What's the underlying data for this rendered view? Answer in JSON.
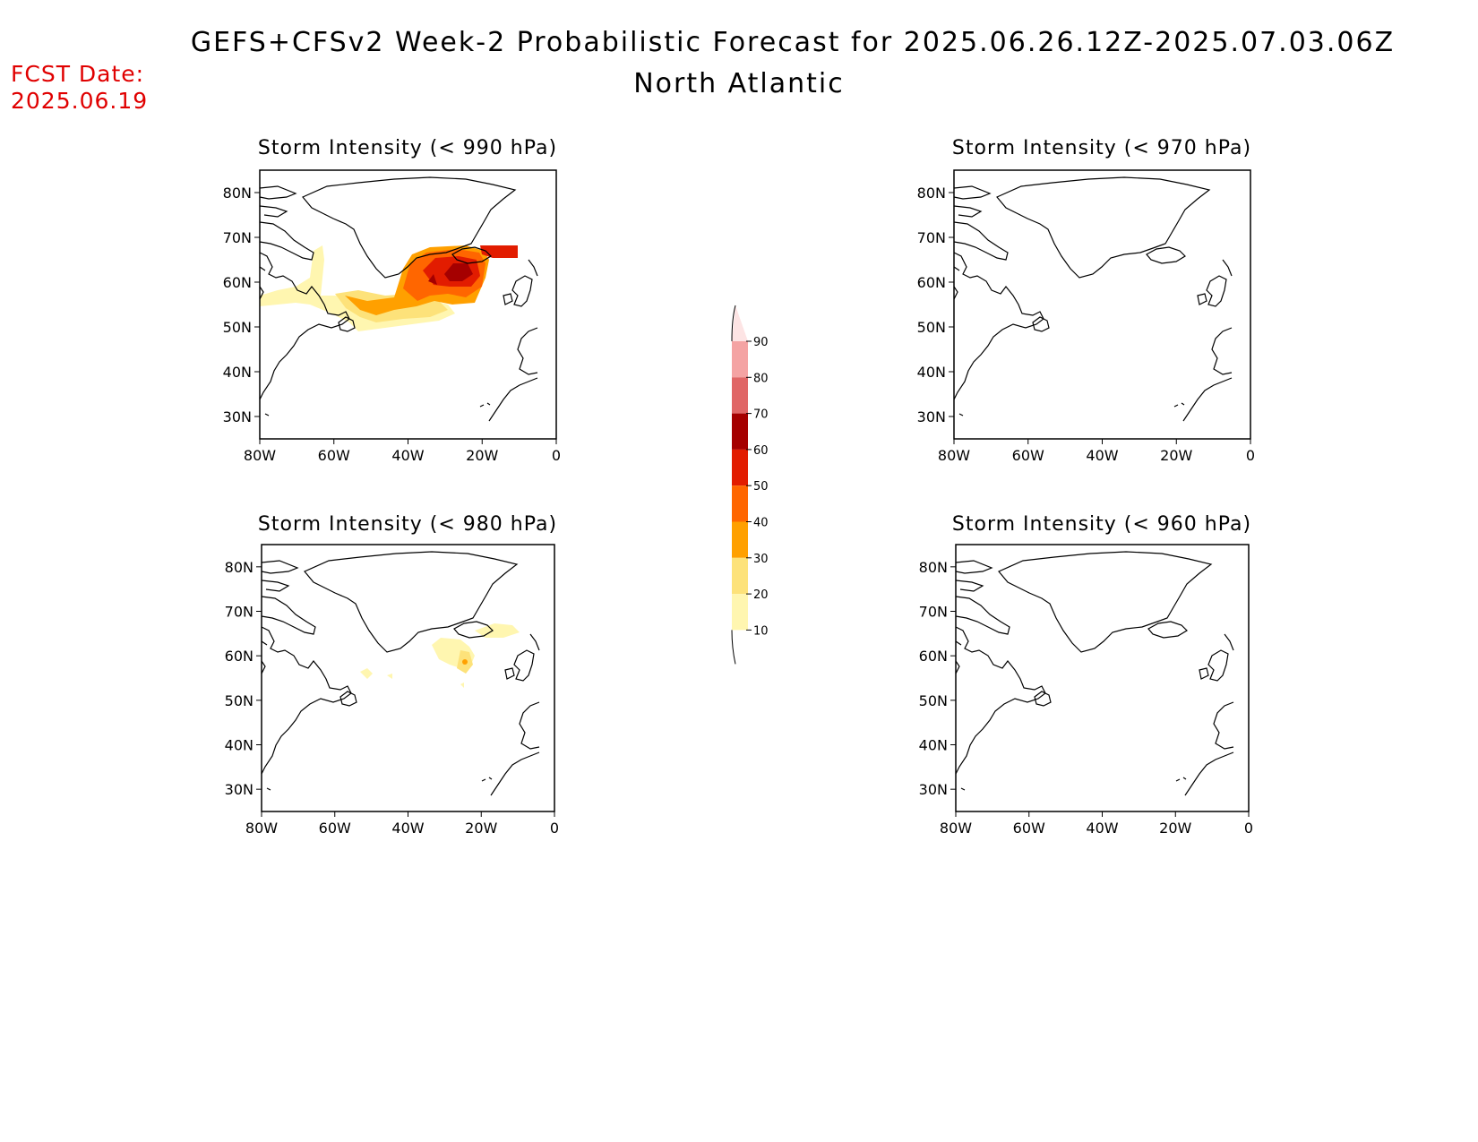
{
  "title": "GEFS+CFSv2 Week-2 Probabilistic Forecast for 2025.06.26.12Z-2025.07.03.06Z",
  "subtitle": "North Atlantic",
  "forecast_date": {
    "label": "FCST Date:",
    "value": "2025.06.19"
  },
  "axes": {
    "lat_ticks": [
      "80N",
      "70N",
      "60N",
      "50N",
      "40N",
      "30N"
    ],
    "lon_ticks": [
      "80W",
      "60W",
      "40W",
      "20W",
      "0"
    ]
  },
  "panels": [
    {
      "title": "Storm Intensity (< 990 hPa)"
    },
    {
      "title": "Storm Intensity (< 970 hPa)"
    },
    {
      "title": "Storm Intensity (< 980 hPa)"
    },
    {
      "title": "Storm Intensity (< 960 hPa)"
    }
  ],
  "colorbar": {
    "labels": [
      "90",
      "80",
      "70",
      "60",
      "50",
      "40",
      "30",
      "20",
      "10"
    ],
    "colors": [
      "#fde4e4",
      "#f4a3a3",
      "#e06666",
      "#a50000",
      "#e21c00",
      "#ff6600",
      "#ffa000",
      "#fde27a",
      "#fff6b0"
    ]
  }
}
